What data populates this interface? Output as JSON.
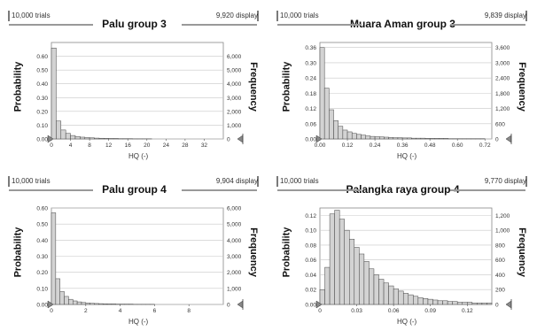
{
  "chart_data": [
    {
      "type": "bar",
      "header": {
        "trials": "10,000 trials",
        "display": "9,920 display"
      },
      "title": "Palu group 3",
      "ylabel": "Probability",
      "ylabel_right": "Frequency",
      "xlabel": "HQ (-)",
      "xlim": [
        0,
        36
      ],
      "ylim": [
        0,
        0.7
      ],
      "ylim_right": [
        0,
        7000
      ],
      "x_ticks": [
        "0",
        "4",
        "8",
        "12",
        "16",
        "20",
        "24",
        "28",
        "32"
      ],
      "x_tick_values": [
        0,
        4,
        8,
        12,
        16,
        20,
        24,
        28,
        32
      ],
      "y_ticks": [
        "0.00",
        "0.10",
        "0.20",
        "0.30",
        "0.40",
        "0.50",
        "0.60"
      ],
      "y_tick_values": [
        0,
        0.1,
        0.2,
        0.3,
        0.4,
        0.5,
        0.6
      ],
      "y2_ticks": [
        "0",
        "1,000",
        "2,000",
        "3,000",
        "4,000",
        "5,000",
        "6,000"
      ],
      "y2_tick_values": [
        0,
        1000,
        2000,
        3000,
        4000,
        5000,
        6000
      ],
      "bin_width": 1,
      "bin_starts": [
        0,
        1,
        2,
        3,
        4,
        5,
        6,
        7,
        8,
        9,
        10,
        11,
        12,
        13,
        14,
        15,
        16,
        17,
        18,
        19,
        20
      ],
      "probabilities": [
        0.66,
        0.13,
        0.065,
        0.04,
        0.025,
        0.018,
        0.013,
        0.01,
        0.008,
        0.006,
        0.005,
        0.004,
        0.003,
        0.003,
        0.002,
        0.002,
        0.002,
        0.001,
        0.001,
        0.001,
        0.001
      ],
      "grid": true
    },
    {
      "type": "bar",
      "header": {
        "trials": "10,000 trials",
        "display": "9,839 display"
      },
      "title": "Muara Aman group 3",
      "ylabel": "Probability",
      "ylabel_right": "Frequency",
      "xlabel": "HQ (-)",
      "xlim": [
        0,
        0.75
      ],
      "ylim": [
        0,
        0.38
      ],
      "ylim_right": [
        0,
        3800
      ],
      "x_ticks": [
        "0.00",
        "0.12",
        "0.24",
        "0.36",
        "0.48",
        "0.60",
        "0.72"
      ],
      "x_tick_values": [
        0,
        0.12,
        0.24,
        0.36,
        0.48,
        0.6,
        0.72
      ],
      "y_ticks": [
        "0.00",
        "0.06",
        "0.12",
        "0.18",
        "0.24",
        "0.30",
        "0.36"
      ],
      "y_tick_values": [
        0,
        0.06,
        0.12,
        0.18,
        0.24,
        0.3,
        0.36
      ],
      "y2_ticks": [
        "0",
        "600",
        "1,200",
        "1,800",
        "2,400",
        "3,000",
        "3,600"
      ],
      "y2_tick_values": [
        0,
        600,
        1200,
        1800,
        2400,
        3000,
        3600
      ],
      "bin_width": 0.02,
      "bin_starts": [
        0,
        0.02,
        0.04,
        0.06,
        0.08,
        0.1,
        0.12,
        0.14,
        0.16,
        0.18,
        0.2,
        0.22,
        0.24,
        0.26,
        0.28,
        0.3,
        0.32,
        0.34,
        0.36,
        0.38,
        0.4,
        0.42,
        0.44,
        0.46,
        0.48,
        0.5,
        0.52,
        0.54,
        0.56,
        0.58,
        0.6,
        0.62,
        0.64,
        0.66,
        0.68,
        0.7
      ],
      "probabilities": [
        0.36,
        0.2,
        0.115,
        0.072,
        0.05,
        0.035,
        0.028,
        0.022,
        0.018,
        0.015,
        0.012,
        0.01,
        0.009,
        0.008,
        0.007,
        0.006,
        0.005,
        0.005,
        0.004,
        0.004,
        0.003,
        0.003,
        0.003,
        0.002,
        0.002,
        0.002,
        0.002,
        0.002,
        0.001,
        0.001,
        0.001,
        0.001,
        0.001,
        0.001,
        0.001,
        0.001
      ],
      "grid": true
    },
    {
      "type": "bar",
      "header": {
        "trials": "10,000 trials",
        "display": "9,904 display"
      },
      "title": "Palu group 4",
      "ylabel": "Probability",
      "ylabel_right": "Frequency",
      "xlabel": "HQ (-)",
      "xlim": [
        0,
        10
      ],
      "ylim": [
        0,
        0.6
      ],
      "ylim_right": [
        0,
        6000
      ],
      "x_ticks": [
        "0",
        "2",
        "4",
        "6",
        "8"
      ],
      "x_tick_values": [
        0,
        2,
        4,
        6,
        8
      ],
      "y_ticks": [
        "0.00",
        "0.10",
        "0.20",
        "0.30",
        "0.40",
        "0.50",
        "0.60"
      ],
      "y_tick_values": [
        0,
        0.1,
        0.2,
        0.3,
        0.4,
        0.5,
        0.6
      ],
      "y2_ticks": [
        "0",
        "1,000",
        "2,000",
        "3,000",
        "4,000",
        "5,000",
        "6,000"
      ],
      "y2_tick_values": [
        0,
        1000,
        2000,
        3000,
        4000,
        5000,
        6000
      ],
      "bin_width": 0.25,
      "bin_starts": [
        0,
        0.25,
        0.5,
        0.75,
        1,
        1.25,
        1.5,
        1.75,
        2,
        2.25,
        2.5,
        2.75,
        3,
        3.25,
        3.5,
        3.75,
        4,
        4.25,
        4.5,
        4.75,
        5,
        5.25,
        5.5,
        5.75
      ],
      "probabilities": [
        0.57,
        0.16,
        0.08,
        0.05,
        0.032,
        0.022,
        0.016,
        0.012,
        0.009,
        0.007,
        0.006,
        0.005,
        0.004,
        0.003,
        0.003,
        0.002,
        0.002,
        0.002,
        0.002,
        0.001,
        0.001,
        0.001,
        0.001,
        0.001
      ],
      "grid": true
    },
    {
      "type": "bar",
      "header": {
        "trials": "10,000 trials",
        "display": "9,770 display"
      },
      "title": "Palangka raya group 4",
      "ylabel": "Probability",
      "ylabel_right": "Frequency",
      "xlabel": "HQ (-)",
      "xlim": [
        0,
        0.14
      ],
      "ylim": [
        0,
        0.13
      ],
      "ylim_right": [
        0,
        1300
      ],
      "x_ticks": [
        "0",
        "0.03",
        "0.06",
        "0.09",
        "0.12"
      ],
      "x_tick_values": [
        0,
        0.03,
        0.06,
        0.09,
        0.12
      ],
      "y_ticks": [
        "0.00",
        "0.02",
        "0.04",
        "0.06",
        "0.08",
        "0.10",
        "0.12"
      ],
      "y_tick_values": [
        0,
        0.02,
        0.04,
        0.06,
        0.08,
        0.1,
        0.12
      ],
      "y2_ticks": [
        "0",
        "200",
        "400",
        "600",
        "800",
        "1,000",
        "1,200"
      ],
      "y2_tick_values": [
        0,
        200,
        400,
        600,
        800,
        1000,
        1200
      ],
      "bin_width": 0.004,
      "bin_starts": [
        0,
        0.004,
        0.008,
        0.012,
        0.016,
        0.02,
        0.024,
        0.028,
        0.032,
        0.036,
        0.04,
        0.044,
        0.048,
        0.052,
        0.056,
        0.06,
        0.064,
        0.068,
        0.072,
        0.076,
        0.08,
        0.084,
        0.088,
        0.092,
        0.096,
        0.1,
        0.104,
        0.108,
        0.112,
        0.116,
        0.12,
        0.124,
        0.128,
        0.132,
        0.136
      ],
      "probabilities": [
        0.02,
        0.05,
        0.122,
        0.127,
        0.115,
        0.1,
        0.088,
        0.077,
        0.068,
        0.058,
        0.048,
        0.04,
        0.034,
        0.029,
        0.025,
        0.021,
        0.018,
        0.015,
        0.013,
        0.011,
        0.009,
        0.008,
        0.007,
        0.006,
        0.005,
        0.005,
        0.004,
        0.004,
        0.003,
        0.003,
        0.003,
        0.002,
        0.002,
        0.002,
        0.002
      ],
      "grid": true
    }
  ]
}
